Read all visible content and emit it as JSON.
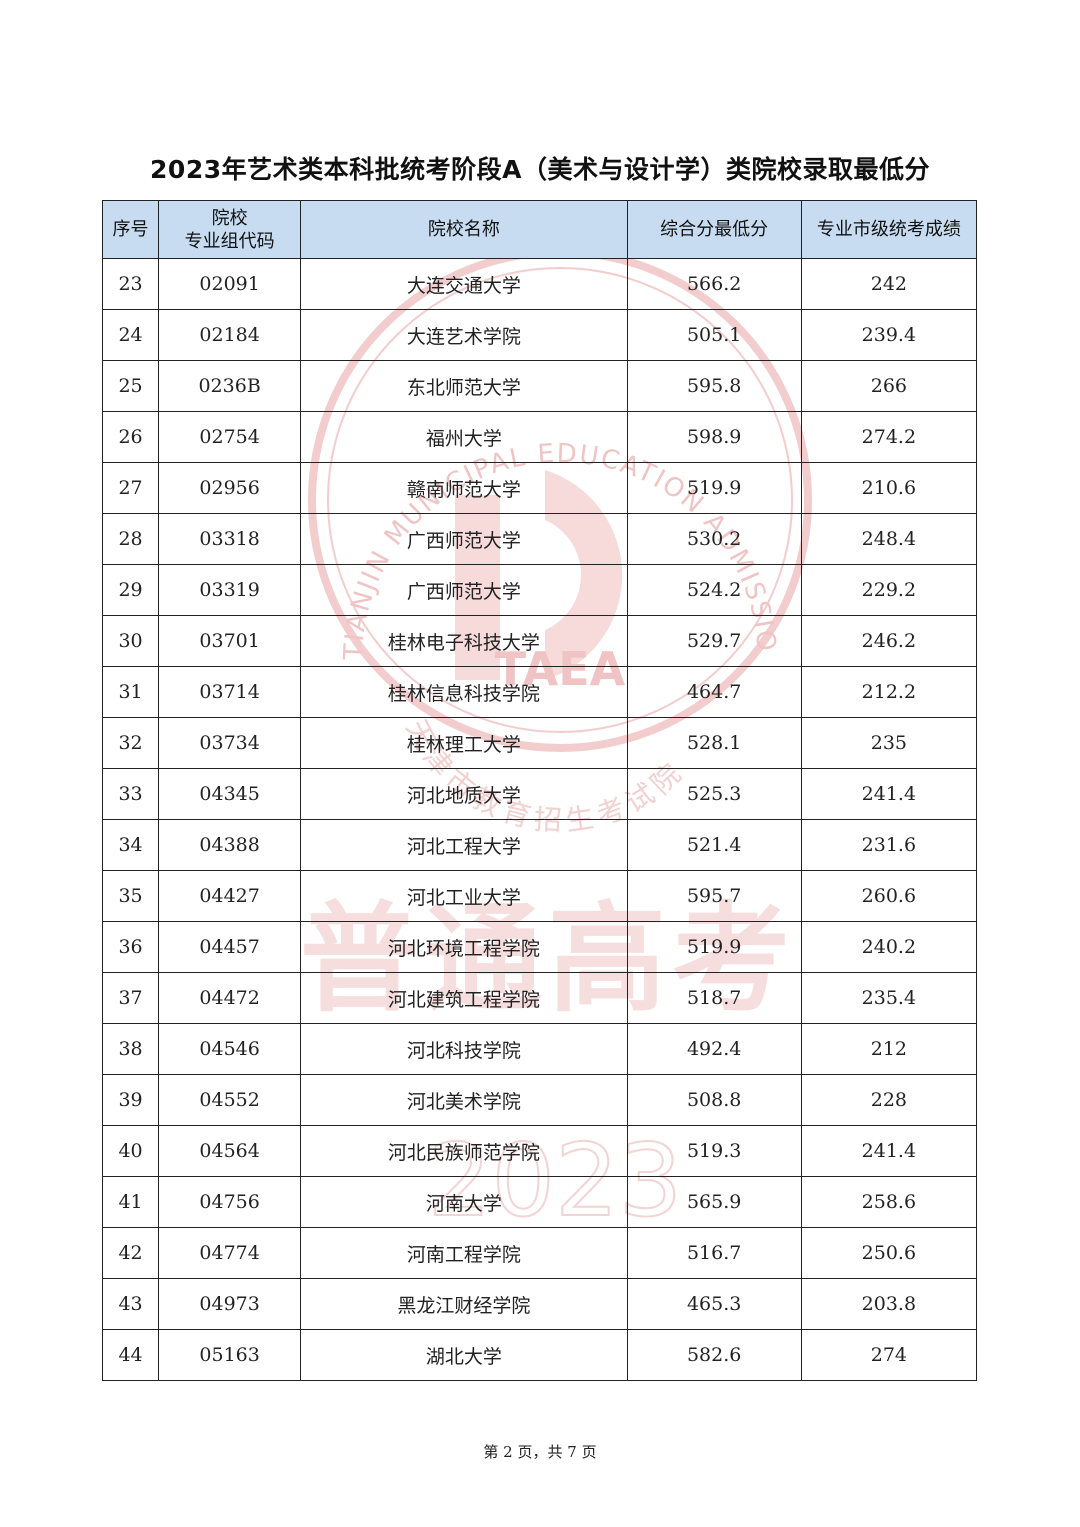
{
  "title": "2023年艺术类本科批统考阶段A（美术与设计学）类院校录取最低分",
  "table": {
    "headers": {
      "no": "序号",
      "code_line1": "院校",
      "code_line2": "专业组代码",
      "name": "院校名称",
      "score": "综合分最低分",
      "pro": "专业市级统考成绩"
    },
    "rows": [
      {
        "no": "23",
        "code": "02091",
        "name": "大连交通大学",
        "score": "566.2",
        "pro": "242"
      },
      {
        "no": "24",
        "code": "02184",
        "name": "大连艺术学院",
        "score": "505.1",
        "pro": "239.4"
      },
      {
        "no": "25",
        "code": "0236B",
        "name": "东北师范大学",
        "score": "595.8",
        "pro": "266"
      },
      {
        "no": "26",
        "code": "02754",
        "name": "福州大学",
        "score": "598.9",
        "pro": "274.2"
      },
      {
        "no": "27",
        "code": "02956",
        "name": "赣南师范大学",
        "score": "519.9",
        "pro": "210.6"
      },
      {
        "no": "28",
        "code": "03318",
        "name": "广西师范大学",
        "score": "530.2",
        "pro": "248.4"
      },
      {
        "no": "29",
        "code": "03319",
        "name": "广西师范大学",
        "score": "524.2",
        "pro": "229.2"
      },
      {
        "no": "30",
        "code": "03701",
        "name": "桂林电子科技大学",
        "score": "529.7",
        "pro": "246.2"
      },
      {
        "no": "31",
        "code": "03714",
        "name": "桂林信息科技学院",
        "score": "464.7",
        "pro": "212.2"
      },
      {
        "no": "32",
        "code": "03734",
        "name": "桂林理工大学",
        "score": "528.1",
        "pro": "235"
      },
      {
        "no": "33",
        "code": "04345",
        "name": "河北地质大学",
        "score": "525.3",
        "pro": "241.4"
      },
      {
        "no": "34",
        "code": "04388",
        "name": "河北工程大学",
        "score": "521.4",
        "pro": "231.6"
      },
      {
        "no": "35",
        "code": "04427",
        "name": "河北工业大学",
        "score": "595.7",
        "pro": "260.6"
      },
      {
        "no": "36",
        "code": "04457",
        "name": "河北环境工程学院",
        "score": "519.9",
        "pro": "240.2"
      },
      {
        "no": "37",
        "code": "04472",
        "name": "河北建筑工程学院",
        "score": "518.7",
        "pro": "235.4"
      },
      {
        "no": "38",
        "code": "04546",
        "name": "河北科技学院",
        "score": "492.4",
        "pro": "212"
      },
      {
        "no": "39",
        "code": "04552",
        "name": "河北美术学院",
        "score": "508.8",
        "pro": "228"
      },
      {
        "no": "40",
        "code": "04564",
        "name": "河北民族师范学院",
        "score": "519.3",
        "pro": "241.4"
      },
      {
        "no": "41",
        "code": "04756",
        "name": "河南大学",
        "score": "565.9",
        "pro": "258.6"
      },
      {
        "no": "42",
        "code": "04774",
        "name": "河南工程学院",
        "score": "516.7",
        "pro": "250.6"
      },
      {
        "no": "43",
        "code": "04973",
        "name": "黑龙江财经学院",
        "score": "465.3",
        "pro": "203.8"
      },
      {
        "no": "44",
        "code": "05163",
        "name": "湖北大学",
        "score": "582.6",
        "pro": "274"
      }
    ]
  },
  "watermark": {
    "seal_text_top": "TIANJIN MUNICIPAL EDUCATION ADMISSION AND EXAMINATIONS AUTHORITY",
    "seal_abbr": "TAEA",
    "seal_text_bottom": "天津市教育招生考试院",
    "big_text": "普通高考",
    "year": "2023"
  },
  "footer": "第 2 页，共 7 页"
}
